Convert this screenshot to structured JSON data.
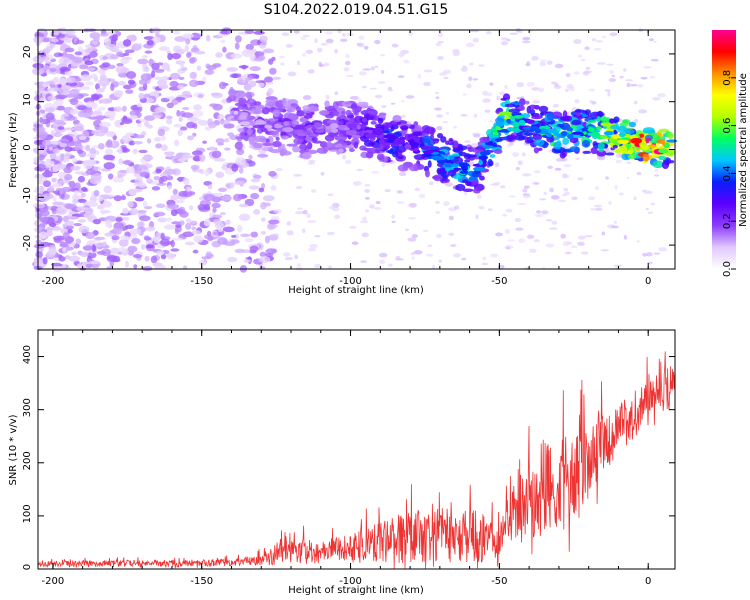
{
  "title": "S104.2022.019.04.51.G15",
  "chart_data": [
    {
      "type": "heatmap",
      "xlabel": "Height of straight line (km)",
      "ylabel": "Frequency (Hz)",
      "xlim": [
        -205,
        9
      ],
      "ylim": [
        -25,
        25
      ],
      "x_ticks": [
        "-200",
        "-150",
        "-100",
        "-50",
        "0"
      ],
      "y_ticks": [
        "20",
        "10",
        "0",
        "-10",
        "-20"
      ],
      "x_tick_values": [
        -200,
        -150,
        -100,
        -50,
        0
      ],
      "y_tick_values": [
        20,
        10,
        0,
        -10,
        -20
      ],
      "colorbar": {
        "label": "Normalized spectral amplitude",
        "range": [
          0,
          1
        ],
        "ticks": [
          "0.0",
          "0.2",
          "0.4",
          "0.6",
          "0.8"
        ],
        "tick_values": [
          0,
          0.2,
          0.4,
          0.6,
          0.8
        ],
        "colormap": [
          "#ffffff",
          "#e0c8ff",
          "#8c3cff",
          "#5a00ff",
          "#0a1eff",
          "#00c8ff",
          "#00ff60",
          "#b4ff00",
          "#ffff00",
          "#ff9000",
          "#ff0000",
          "#ff0090"
        ]
      },
      "ridge": [
        {
          "x": -140,
          "y": 7,
          "amp": 0.12
        },
        {
          "x": -125,
          "y": 5,
          "amp": 0.14
        },
        {
          "x": -115,
          "y": 4,
          "amp": 0.18
        },
        {
          "x": -105,
          "y": 5,
          "amp": 0.16
        },
        {
          "x": -95,
          "y": 4,
          "amp": 0.22
        },
        {
          "x": -88,
          "y": 2,
          "amp": 0.3
        },
        {
          "x": -80,
          "y": 1,
          "amp": 0.25
        },
        {
          "x": -72,
          "y": -1,
          "amp": 0.35
        },
        {
          "x": -65,
          "y": -3,
          "amp": 0.4
        },
        {
          "x": -58,
          "y": -5,
          "amp": 0.35
        },
        {
          "x": -48,
          "y": 7,
          "amp": 0.55
        },
        {
          "x": -40,
          "y": 5,
          "amp": 0.35
        },
        {
          "x": -30,
          "y": 3,
          "amp": 0.5
        },
        {
          "x": -20,
          "y": 4,
          "amp": 0.45
        },
        {
          "x": -12,
          "y": 3,
          "amp": 0.6
        },
        {
          "x": -5,
          "y": 2,
          "amp": 0.75
        },
        {
          "x": 3,
          "y": 0,
          "amp": 0.95
        },
        {
          "x": 8,
          "y": 1,
          "amp": 0.55
        }
      ]
    },
    {
      "type": "line",
      "xlabel": "Height of straight line (km)",
      "ylabel": "SNR (10 * v/v)",
      "xlim": [
        -205,
        9
      ],
      "ylim": [
        0,
        450
      ],
      "x_ticks": [
        "-200",
        "-150",
        "-100",
        "-50",
        "0"
      ],
      "y_ticks": [
        "0",
        "100",
        "200",
        "300",
        "400"
      ],
      "x_tick_values": [
        -200,
        -150,
        -100,
        -50,
        0
      ],
      "y_tick_values": [
        0,
        100,
        200,
        300,
        400
      ],
      "color": "#ee3333",
      "envelope": [
        {
          "x": -205,
          "base": 8,
          "spread": 12
        },
        {
          "x": -140,
          "base": 10,
          "spread": 15
        },
        {
          "x": -128,
          "base": 15,
          "spread": 25
        },
        {
          "x": -122,
          "base": 30,
          "spread": 70
        },
        {
          "x": -110,
          "base": 25,
          "spread": 45
        },
        {
          "x": -95,
          "base": 35,
          "spread": 75
        },
        {
          "x": -80,
          "base": 45,
          "spread": 110
        },
        {
          "x": -65,
          "base": 50,
          "spread": 120
        },
        {
          "x": -55,
          "base": 45,
          "spread": 100
        },
        {
          "x": -50,
          "base": 40,
          "spread": 70
        },
        {
          "x": -45,
          "base": 90,
          "spread": 120
        },
        {
          "x": -35,
          "base": 130,
          "spread": 200
        },
        {
          "x": -25,
          "base": 140,
          "spread": 200
        },
        {
          "x": -18,
          "base": 200,
          "spread": 170
        },
        {
          "x": -10,
          "base": 250,
          "spread": 100
        },
        {
          "x": 0,
          "base": 300,
          "spread": 100
        },
        {
          "x": 9,
          "base": 340,
          "spread": 80
        }
      ]
    }
  ]
}
